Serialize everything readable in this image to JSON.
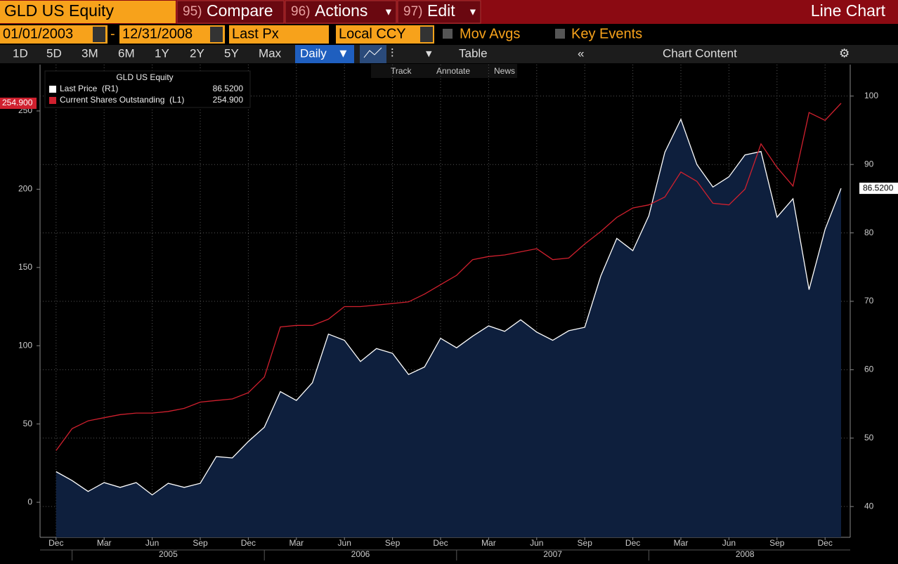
{
  "toolbar": {
    "ticker": "GLD US Equity",
    "menus": [
      {
        "code": "95)",
        "label": "Compare"
      },
      {
        "code": "96)",
        "label": "Actions"
      },
      {
        "code": "97)",
        "label": "Edit"
      }
    ],
    "view": "Line Chart",
    "start_date": "01/01/2003",
    "date_separator": "-",
    "end_date": "12/31/2008",
    "field": "Last Px",
    "currency": "Local CCY",
    "mov_avgs": "Mov Avgs",
    "key_events": "Key Events",
    "periods": [
      "1D",
      "5D",
      "3M",
      "6M",
      "1Y",
      "2Y",
      "5Y",
      "Max"
    ],
    "frequency": "Daily",
    "table": "Table",
    "chart_content": "Chart Content",
    "tools": [
      "Track",
      "Annotate",
      "News"
    ]
  },
  "chart_data": {
    "type": "line",
    "legend_title": "GLD US Equity",
    "x": [
      "2004-11",
      "2004-12",
      "2005-01",
      "2005-02",
      "2005-03",
      "2005-04",
      "2005-05",
      "2005-06",
      "2005-07",
      "2005-08",
      "2005-09",
      "2005-10",
      "2005-11",
      "2005-12",
      "2006-01",
      "2006-02",
      "2006-03",
      "2006-04",
      "2006-05",
      "2006-06",
      "2006-07",
      "2006-08",
      "2006-09",
      "2006-10",
      "2006-11",
      "2006-12",
      "2007-01",
      "2007-02",
      "2007-03",
      "2007-04",
      "2007-05",
      "2007-06",
      "2007-07",
      "2007-08",
      "2007-09",
      "2007-10",
      "2007-11",
      "2007-12",
      "2008-01",
      "2008-02",
      "2008-03",
      "2008-04",
      "2008-05",
      "2008-06",
      "2008-07",
      "2008-08",
      "2008-09",
      "2008-10",
      "2008-11",
      "2008-12"
    ],
    "series": [
      {
        "name": "Last Price  (R1)",
        "color": "#ffffff",
        "fill": "#0e1f3d",
        "axis": "y2",
        "last_label": "86.5200",
        "values": [
          45.1,
          43.8,
          42.2,
          43.5,
          42.8,
          43.5,
          41.7,
          43.4,
          42.8,
          43.4,
          47.3,
          47.1,
          49.5,
          51.6,
          56.8,
          55.5,
          58.1,
          65.2,
          64.3,
          61.2,
          63.1,
          62.4,
          59.3,
          60.4,
          64.6,
          63.2,
          64.9,
          66.4,
          65.6,
          67.3,
          65.5,
          64.3,
          65.7,
          66.2,
          73.7,
          79.2,
          77.4,
          82.5,
          91.8,
          96.6,
          90.0,
          86.7,
          88.2,
          91.4,
          91.9,
          82.3,
          85.0,
          71.7,
          80.5,
          86.52
        ]
      },
      {
        "name": "Current Shares Outstanding  (L1)",
        "color": "#d0202e",
        "axis": "y",
        "last_label": "254.900",
        "values": [
          33,
          47,
          52,
          54,
          56,
          57,
          57,
          58,
          60,
          64,
          65,
          66,
          70,
          80,
          112,
          113,
          113,
          117,
          125,
          125,
          126,
          127,
          128,
          133,
          139,
          145,
          155,
          157,
          158,
          160,
          162,
          155,
          156,
          165,
          173,
          182,
          188,
          190,
          195,
          211,
          205,
          191,
          190,
          200,
          229,
          214,
          202,
          249,
          244,
          254.9
        ]
      }
    ],
    "ylim": [
      -22.4,
      279.6
    ],
    "yticks": [
      0,
      50,
      100,
      150,
      200,
      250
    ],
    "y2lim": [
      35.5,
      104.6
    ],
    "y2ticks": [
      40,
      50,
      60,
      70,
      80,
      90,
      100
    ],
    "xticks": [
      {
        "value": "2004-12",
        "label": "Dec"
      },
      {
        "value": "2005-03",
        "label": "Mar"
      },
      {
        "value": "2005-06",
        "label": "Jun"
      },
      {
        "value": "2005-09",
        "label": "Sep"
      },
      {
        "value": "2005-12",
        "label": "Dec"
      },
      {
        "value": "2006-03",
        "label": "Mar"
      },
      {
        "value": "2006-06",
        "label": "Jun"
      },
      {
        "value": "2006-09",
        "label": "Sep"
      },
      {
        "value": "2006-12",
        "label": "Dec"
      },
      {
        "value": "2007-03",
        "label": "Mar"
      },
      {
        "value": "2007-06",
        "label": "Jun"
      },
      {
        "value": "2007-09",
        "label": "Sep"
      },
      {
        "value": "2007-12",
        "label": "Dec"
      },
      {
        "value": "2008-03",
        "label": "Mar"
      },
      {
        "value": "2008-06",
        "label": "Jun"
      },
      {
        "value": "2008-09",
        "label": "Sep"
      },
      {
        "value": "2008-12",
        "label": "Dec"
      }
    ],
    "xgroups": [
      "2005",
      "2006",
      "2007",
      "2008"
    ],
    "grid": true
  }
}
